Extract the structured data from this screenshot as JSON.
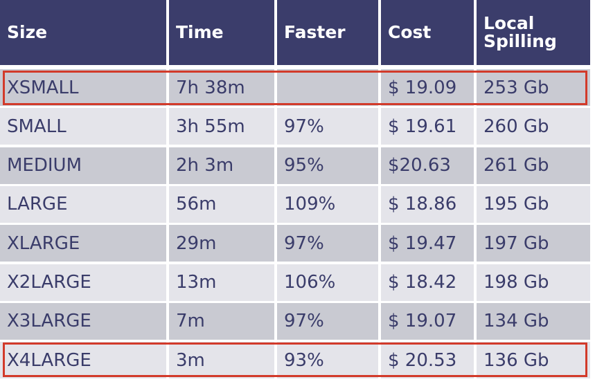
{
  "table": {
    "header": [
      "Size",
      "Time",
      "Faster",
      "Cost",
      "Local Spilling"
    ],
    "rows": [
      [
        "XSMALL",
        "7h 38m",
        null,
        "$ 19.09",
        "253 Gb"
      ],
      [
        "SMALL",
        "3h 55m",
        "97%",
        "$ 19.61",
        "260 Gb"
      ],
      [
        "MEDIUM",
        "2h 3m",
        "95%",
        "$20.63",
        "261 Gb"
      ],
      [
        "LARGE",
        "56m",
        "109%",
        "$ 18.86",
        "195 Gb"
      ],
      [
        "XLARGE",
        "29m",
        "97%",
        "$ 19.47",
        "197 Gb"
      ],
      [
        "X2LARGE",
        "13m",
        "106%",
        "$ 18.42",
        "198 Gb"
      ],
      [
        "X3LARGE",
        "7m",
        "97%",
        "$ 19.07",
        "134 Gb"
      ],
      [
        "X4LARGE",
        "3m",
        "93%",
        "$ 20.53",
        "136 Gb"
      ]
    ]
  }
}
